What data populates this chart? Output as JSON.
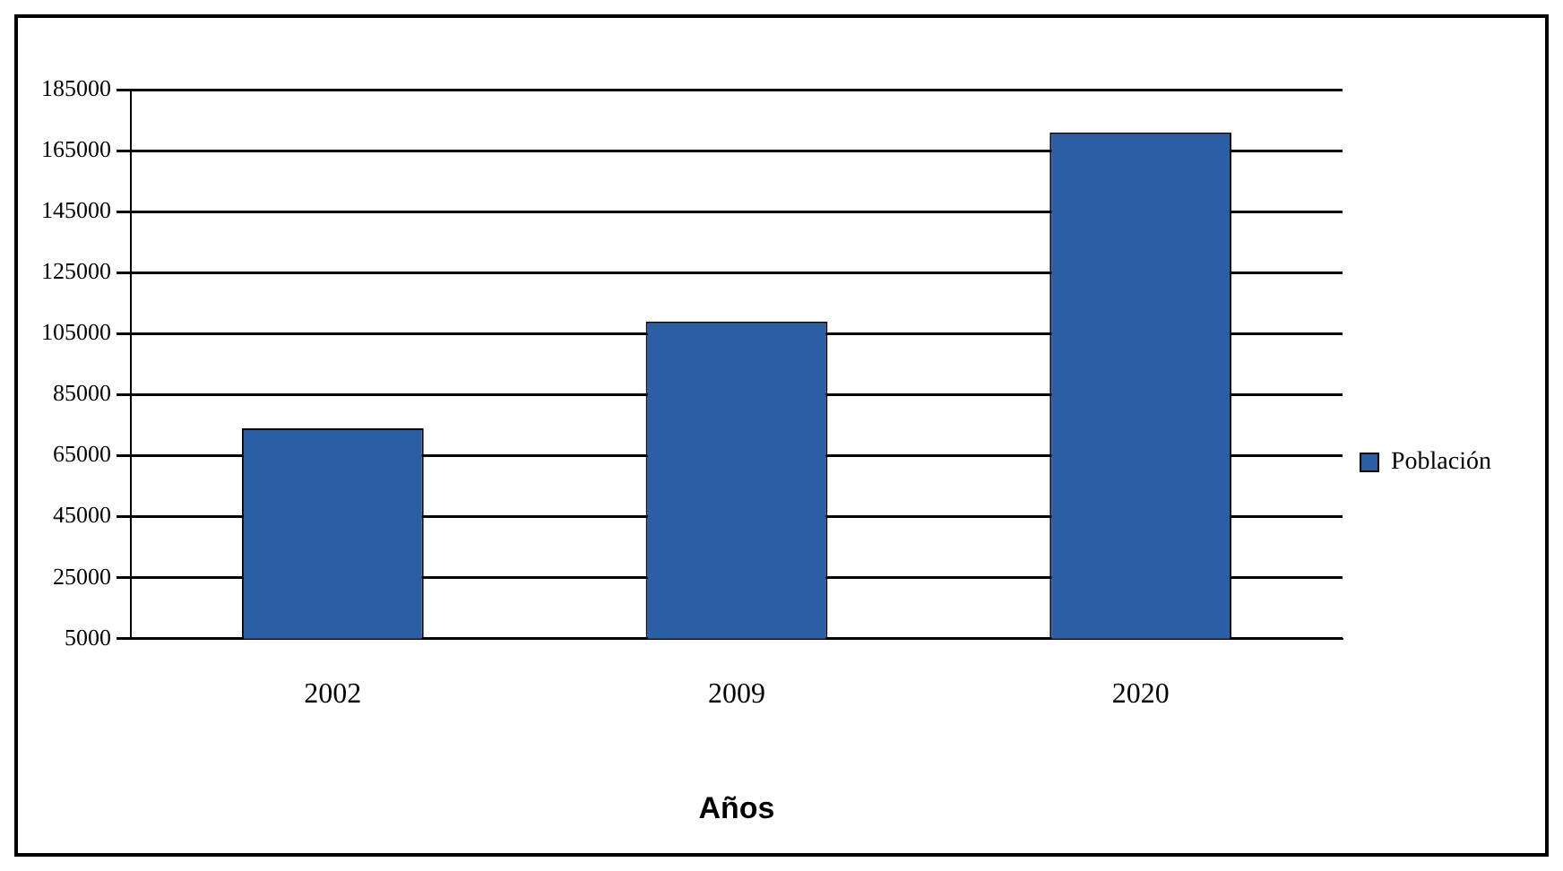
{
  "chart_data": {
    "type": "bar",
    "xlabel": "Años",
    "categories": [
      "2002",
      "2009",
      "2020"
    ],
    "series": [
      {
        "name": "Población",
        "color": "#2a5ea5",
        "values": [
          74000,
          109000,
          171000
        ]
      }
    ],
    "ylim": [
      5000,
      185000
    ],
    "yticks": [
      5000,
      25000,
      45000,
      65000,
      85000,
      105000,
      125000,
      145000,
      165000,
      185000
    ],
    "grid": "y",
    "legend": "right"
  }
}
